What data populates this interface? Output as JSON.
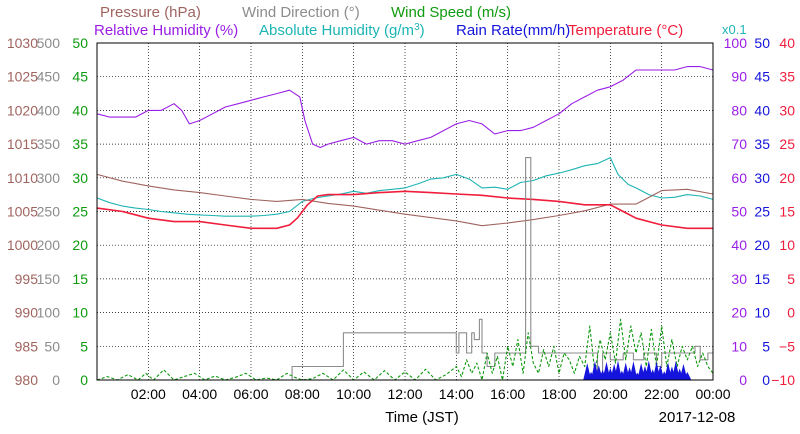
{
  "chart_data": {
    "type": "line",
    "header": {
      "row1": [
        {
          "text": "Pressure (hPa)",
          "color": "#a0645f"
        },
        {
          "text": "Wind Direction (°)",
          "color": "#8c8c8c"
        },
        {
          "text": "Wind Speed (m/s)",
          "color": "#0f9a0f"
        }
      ],
      "row2": [
        {
          "text": "Relative Humidity (%)",
          "color": "#9a1ee6"
        },
        {
          "text": "Absolute Humidity (g/m",
          "sup": "3",
          "close": ")",
          "color": "#1eb4b4"
        },
        {
          "text": "Rain Rate(mm/h)",
          "color": "#1414dc"
        },
        {
          "text": "Temperature (°C)",
          "color": "#f01e3c"
        }
      ],
      "rain_scale": "x0.1"
    },
    "xlabel": "Time (JST)",
    "date_label": "2017-12-08",
    "x_ticks": [
      "02:00",
      "04:00",
      "06:00",
      "08:00",
      "10:00",
      "12:00",
      "14:00",
      "16:00",
      "18:00",
      "20:00",
      "22:00",
      "00:00"
    ],
    "x_range_hours": [
      0,
      24
    ],
    "axes": {
      "pressure": {
        "ticks": [
          "1030",
          "1025",
          "1020",
          "1015",
          "1010",
          "1005",
          "1000",
          "995",
          "990",
          "985",
          "980"
        ],
        "range": [
          980,
          1030
        ],
        "color": "#a0645f"
      },
      "wind_direction": {
        "ticks": [
          "500",
          "450",
          "400",
          "350",
          "300",
          "250",
          "200",
          "150",
          "100",
          "50",
          "0"
        ],
        "range": [
          0,
          500
        ],
        "color": "#8c8c8c"
      },
      "wind_speed": {
        "ticks": [
          "50",
          "45",
          "40",
          "35",
          "30",
          "25",
          "20",
          "15",
          "10",
          "5",
          "0"
        ],
        "range": [
          0,
          50
        ],
        "color": "#0f9a0f"
      },
      "relative_humidity": {
        "ticks": [
          "100",
          "90",
          "80",
          "70",
          "60",
          "50",
          "40",
          "30",
          "20",
          "10",
          "0"
        ],
        "range": [
          0,
          100
        ],
        "color": "#9a1ee6"
      },
      "rain_rate": {
        "ticks": [
          "50",
          "45",
          "40",
          "35",
          "30",
          "25",
          "20",
          "15",
          "10",
          "5",
          "0"
        ],
        "range": [
          0,
          50
        ],
        "color": "#1414dc"
      },
      "temperature": {
        "ticks": [
          "40",
          "35",
          "30",
          "25",
          "20",
          "15",
          "10",
          "5",
          "0",
          "−5",
          "−10"
        ],
        "range": [
          -10,
          40
        ],
        "color": "#f01e3c"
      }
    },
    "grid": true,
    "series": [
      {
        "name": "Relative Humidity (%)",
        "axis": "relative_humidity",
        "color": "#9a1ee6",
        "x": [
          0,
          0.5,
          1,
          1.5,
          2,
          2.5,
          3,
          3.3,
          3.6,
          4,
          4.5,
          5,
          5.5,
          6,
          6.5,
          7,
          7.5,
          7.9,
          8.1,
          8.4,
          8.7,
          9,
          9.5,
          10,
          10.5,
          11,
          11.5,
          12,
          12.5,
          13,
          13.5,
          14,
          14.5,
          15,
          15.5,
          16,
          16.5,
          17,
          17.5,
          18,
          18.5,
          19,
          19.5,
          20,
          20.5,
          21,
          21.5,
          22,
          22.5,
          23,
          23.5,
          24
        ],
        "y": [
          79,
          78,
          78,
          78,
          80,
          80,
          82,
          80,
          76,
          77,
          79,
          81,
          82,
          83,
          84,
          85,
          86,
          84,
          77,
          70,
          69,
          70,
          71,
          72,
          70,
          71,
          71,
          70,
          71,
          72,
          74,
          76,
          77,
          76,
          73,
          74,
          74,
          75,
          77,
          79,
          82,
          84,
          86,
          87,
          89,
          92,
          92,
          92,
          92,
          93,
          93,
          92
        ]
      },
      {
        "name": "Absolute Humidity (g/m³)",
        "axis": "wind_speed",
        "color": "#1eb4b4",
        "x": [
          0,
          0.5,
          1,
          1.5,
          2,
          2.5,
          3,
          3.5,
          4,
          4.5,
          5,
          5.5,
          6,
          6.5,
          7,
          7.5,
          8,
          8.5,
          9,
          9.5,
          10,
          10.5,
          11,
          11.5,
          12,
          12.5,
          13,
          13.5,
          14,
          14.5,
          15,
          15.5,
          16,
          16.5,
          17,
          17.5,
          18,
          18.5,
          19,
          19.5,
          20,
          20.3,
          20.7,
          21,
          21.5,
          22,
          22.5,
          23,
          23.5,
          24
        ],
        "y": [
          27,
          26.3,
          25.8,
          25.5,
          25.3,
          25,
          24.8,
          24.6,
          24.5,
          24.4,
          24.3,
          24.3,
          24.3,
          24.4,
          24.6,
          25,
          26.5,
          27,
          27.3,
          27.6,
          28,
          27.7,
          28.1,
          28.3,
          28.5,
          29.1,
          29.8,
          30,
          30.5,
          29.8,
          28.5,
          28.6,
          28.3,
          29.3,
          29.6,
          30.3,
          30.7,
          31.2,
          31.8,
          32.1,
          33,
          30.5,
          29,
          28.5,
          27.5,
          27,
          27.1,
          27.5,
          27.3,
          26.8
        ]
      },
      {
        "name": "Pressure (hPa)",
        "axis": "pressure",
        "color": "#a0645f",
        "x": [
          0,
          1,
          2,
          3,
          4,
          5,
          6,
          7,
          8,
          9,
          10,
          11,
          12,
          13,
          14,
          15,
          16,
          17,
          18,
          19,
          20,
          21,
          22,
          23,
          24
        ],
        "y": [
          1010.5,
          1009.5,
          1008.8,
          1008.2,
          1007.8,
          1007.3,
          1006.8,
          1006.5,
          1006.8,
          1006.2,
          1005.8,
          1005.2,
          1004.6,
          1004.1,
          1003.6,
          1002.9,
          1003.3,
          1003.8,
          1004.4,
          1005.1,
          1006.1,
          1006.1,
          1008.1,
          1008.3,
          1007.6
        ]
      },
      {
        "name": "Temperature (°C)",
        "axis": "temperature",
        "color": "#f01e3c",
        "x": [
          0,
          1,
          2,
          3,
          4,
          5,
          6,
          7,
          7.5,
          7.8,
          8.2,
          8.6,
          9,
          10,
          11,
          12,
          13,
          14,
          15,
          16,
          17,
          18,
          19,
          20,
          20.5,
          21,
          22,
          23,
          24
        ],
        "y": [
          15.5,
          15,
          14,
          13.5,
          13.5,
          13,
          12.5,
          12.5,
          13,
          14,
          16,
          17.3,
          17.5,
          17.5,
          17.8,
          18,
          17.8,
          17.6,
          17.4,
          17,
          16.8,
          16.5,
          16,
          16,
          15,
          14,
          13,
          12.5,
          12.5
        ]
      },
      {
        "name": "Wind Direction (°)",
        "axis": "wind_direction",
        "color": "#8c8c8c",
        "step": true,
        "x": [
          0,
          7.6,
          7.6,
          9.6,
          9.6,
          10,
          10,
          14,
          14,
          14.1,
          14.1,
          14.4,
          14.4,
          14.6,
          14.6,
          14.7,
          14.7,
          14.9,
          14.9,
          15,
          15,
          15.2,
          15.2,
          15.5,
          15.5,
          16.7,
          16.7,
          16.9,
          16.9,
          17.2,
          17.2,
          18,
          18,
          19.5,
          19.5,
          19.7,
          19.7,
          20,
          20,
          20.5,
          20.5,
          20.9,
          20.9,
          21.3,
          21.3,
          21.8,
          21.8,
          22,
          22,
          23.3,
          23.3,
          23.5,
          23.5,
          23.8,
          23.8,
          24
        ],
        "y": [
          0,
          0,
          20,
          20,
          70,
          70,
          70,
          70,
          40,
          40,
          70,
          70,
          40,
          40,
          70,
          70,
          60,
          60,
          90,
          90,
          40,
          40,
          20,
          20,
          40,
          40,
          330,
          330,
          50,
          50,
          40,
          40,
          40,
          40,
          10,
          10,
          40,
          40,
          30,
          30,
          40,
          40,
          30,
          30,
          40,
          40,
          20,
          20,
          40,
          40,
          50,
          50,
          30,
          30,
          40,
          40
        ]
      },
      {
        "name": "Wind Speed (m/s)",
        "axis": "wind_speed",
        "color": "#0f9a0f",
        "dashed": true,
        "x": [
          0,
          0.4,
          0.8,
          1.2,
          1.6,
          1.9,
          2.2,
          2.6,
          3,
          3.4,
          3.8,
          4.2,
          4.6,
          5,
          5.4,
          5.8,
          6.2,
          6.6,
          7,
          7.4,
          7.7,
          8,
          8.4,
          8.8,
          9.2,
          9.6,
          10,
          10.4,
          10.8,
          11.2,
          11.6,
          12,
          12.4,
          12.8,
          13.2,
          13.6,
          14,
          14.2,
          14.4,
          14.6,
          14.8,
          15,
          15.2,
          15.4,
          15.6,
          15.8,
          16,
          16.2,
          16.4,
          16.6,
          16.8,
          17,
          17.2,
          17.4,
          17.6,
          17.8,
          18,
          18.2,
          18.4,
          18.6,
          18.8,
          19,
          19.2,
          19.4,
          19.6,
          19.8,
          20,
          20.2,
          20.4,
          20.6,
          20.8,
          21,
          21.2,
          21.4,
          21.6,
          21.8,
          22,
          22.2,
          22.4,
          22.6,
          22.8,
          23,
          23.2,
          23.4,
          23.6,
          23.8,
          24
        ],
        "y": [
          0,
          0.5,
          0,
          0.8,
          0,
          1,
          0,
          1.5,
          0,
          0.5,
          1,
          0,
          0.6,
          0,
          0.4,
          1,
          0,
          0.3,
          0,
          1,
          0.4,
          0,
          0.2,
          1,
          0,
          1.5,
          0,
          1.2,
          0,
          1.4,
          0,
          1.2,
          0,
          1.6,
          0,
          0.8,
          2,
          0.5,
          3,
          1,
          2.5,
          0,
          4,
          1,
          3.5,
          0,
          5,
          2,
          6,
          1,
          7,
          2.5,
          1,
          4.5,
          2,
          5,
          1,
          4,
          3,
          1,
          3.5,
          2,
          8,
          1,
          6,
          3,
          7,
          2.5,
          9,
          3,
          8,
          4,
          7,
          2,
          7.5,
          2,
          8,
          2,
          6,
          2,
          5,
          3,
          5,
          2,
          4,
          2,
          1
        ]
      },
      {
        "name": "Rain Rate(mm/h)",
        "axis": "rain_rate",
        "color": "#1414dc",
        "bars": true,
        "x": [
          19.1,
          19.25,
          19.4,
          19.55,
          19.7,
          19.85,
          20,
          20.15,
          20.3,
          20.45,
          20.6,
          20.75,
          20.9,
          21.05,
          21.2,
          21.35,
          21.5,
          21.65,
          21.8,
          21.95,
          22.1,
          22.25,
          22.4,
          22.55,
          22.7,
          22.85,
          23.0
        ],
        "y": [
          2.5,
          1.2,
          2.8,
          2.2,
          1.5,
          2.7,
          1.8,
          2.4,
          2.9,
          1.4,
          2.6,
          1.9,
          2.8,
          1.1,
          2.5,
          2.1,
          2.9,
          1.6,
          2.7,
          2.2,
          1.3,
          2.6,
          2.0,
          2.8,
          1.7,
          2.4,
          1.2
        ]
      }
    ]
  }
}
